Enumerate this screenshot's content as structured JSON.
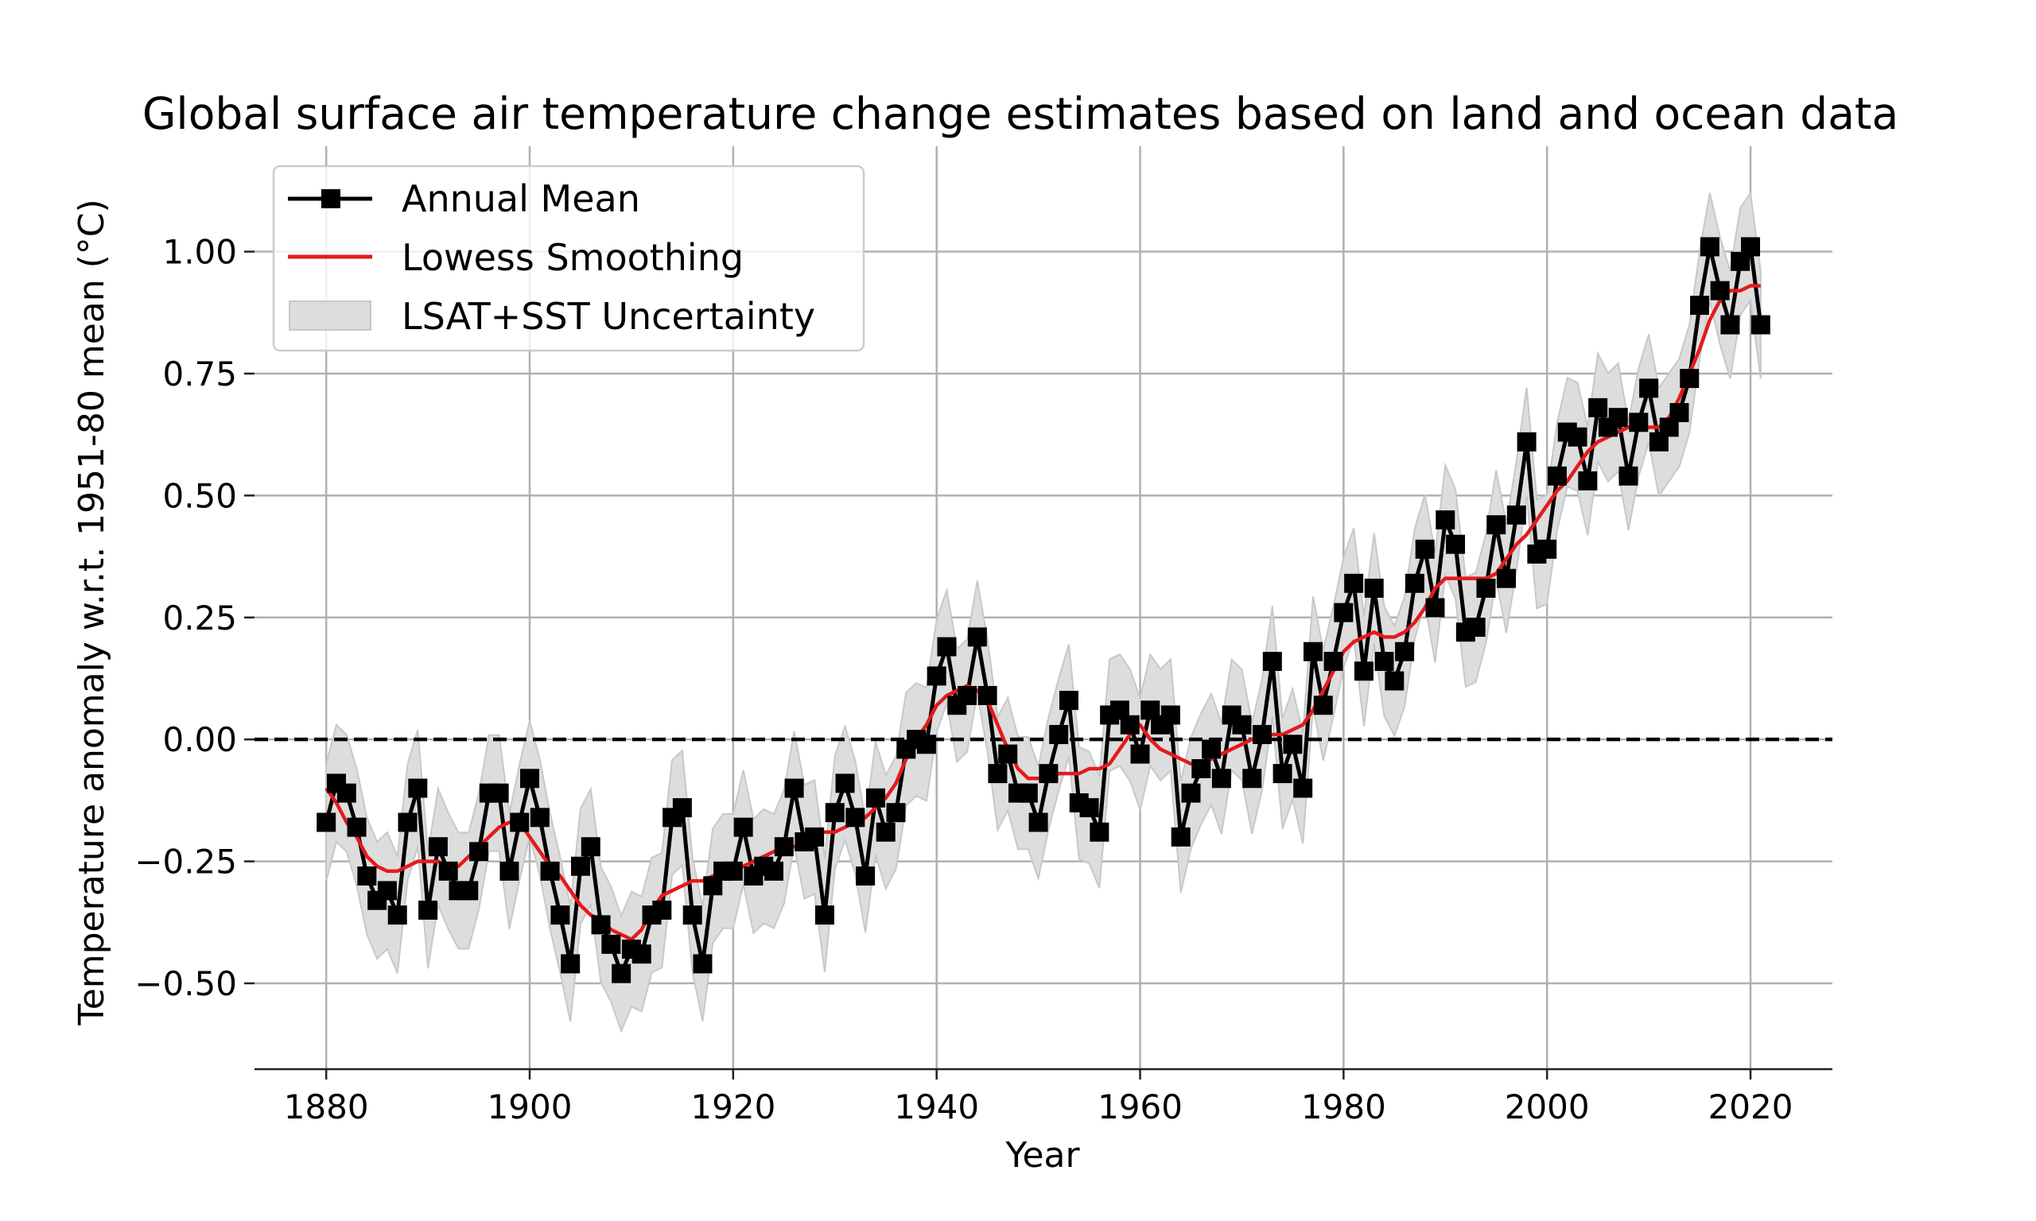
{
  "chart_data": {
    "type": "line",
    "title": "Global surface air temperature change estimates based on land and ocean data",
    "xlabel": "Year",
    "ylabel": "Temperature anomaly w.r.t. 1951-80 mean (°C)",
    "xlim": [
      1872.95,
      2028.05
    ],
    "ylim": [
      -0.676,
      1.216
    ],
    "xticks": [
      1880,
      1900,
      1920,
      1940,
      1960,
      1980,
      2000,
      2020
    ],
    "xtick_labels": [
      "1880",
      "1900",
      "1920",
      "1940",
      "1960",
      "1980",
      "2000",
      "2020"
    ],
    "yticks": [
      -0.5,
      -0.25,
      0.0,
      0.25,
      0.5,
      0.75,
      1.0
    ],
    "ytick_labels": [
      "−0.50",
      "−0.25",
      "0.00",
      "0.25",
      "0.50",
      "0.75",
      "1.00"
    ],
    "grid": true,
    "reference_line": {
      "y": 0.0,
      "style": "dashed",
      "color": "#000000"
    },
    "legend": {
      "position": "top-left",
      "entries": [
        {
          "label": "Annual Mean",
          "kind": "line-marker",
          "color": "#000000"
        },
        {
          "label": "Lowess Smoothing",
          "kind": "line",
          "color": "#e41a1c"
        },
        {
          "label": "LSAT+SST Uncertainty",
          "kind": "patch",
          "color": "#d9d9d9"
        }
      ]
    },
    "x": [
      1880,
      1881,
      1882,
      1883,
      1884,
      1885,
      1886,
      1887,
      1888,
      1889,
      1890,
      1891,
      1892,
      1893,
      1894,
      1895,
      1896,
      1897,
      1898,
      1899,
      1900,
      1901,
      1902,
      1903,
      1904,
      1905,
      1906,
      1907,
      1908,
      1909,
      1910,
      1911,
      1912,
      1913,
      1914,
      1915,
      1916,
      1917,
      1918,
      1919,
      1920,
      1921,
      1922,
      1923,
      1924,
      1925,
      1926,
      1927,
      1928,
      1929,
      1930,
      1931,
      1932,
      1933,
      1934,
      1935,
      1936,
      1937,
      1938,
      1939,
      1940,
      1941,
      1942,
      1943,
      1944,
      1945,
      1946,
      1947,
      1948,
      1949,
      1950,
      1951,
      1952,
      1953,
      1954,
      1955,
      1956,
      1957,
      1958,
      1959,
      1960,
      1961,
      1962,
      1963,
      1964,
      1965,
      1966,
      1967,
      1968,
      1969,
      1970,
      1971,
      1972,
      1973,
      1974,
      1975,
      1976,
      1977,
      1978,
      1979,
      1980,
      1981,
      1982,
      1983,
      1984,
      1985,
      1986,
      1987,
      1988,
      1989,
      1990,
      1991,
      1992,
      1993,
      1994,
      1995,
      1996,
      1997,
      1998,
      1999,
      2000,
      2001,
      2002,
      2003,
      2004,
      2005,
      2006,
      2007,
      2008,
      2009,
      2010,
      2011,
      2012,
      2013,
      2014,
      2015,
      2016,
      2017,
      2018,
      2019,
      2020,
      2021
    ],
    "series": [
      {
        "name": "Annual Mean",
        "color": "#000000",
        "marker": "square",
        "values": [
          -0.17,
          -0.09,
          -0.11,
          -0.18,
          -0.28,
          -0.33,
          -0.31,
          -0.36,
          -0.17,
          -0.1,
          -0.35,
          -0.22,
          -0.27,
          -0.31,
          -0.31,
          -0.23,
          -0.11,
          -0.11,
          -0.27,
          -0.17,
          -0.08,
          -0.16,
          -0.27,
          -0.36,
          -0.46,
          -0.26,
          -0.22,
          -0.38,
          -0.42,
          -0.48,
          -0.43,
          -0.44,
          -0.36,
          -0.35,
          -0.16,
          -0.14,
          -0.36,
          -0.46,
          -0.3,
          -0.27,
          -0.27,
          -0.18,
          -0.28,
          -0.26,
          -0.27,
          -0.22,
          -0.1,
          -0.21,
          -0.2,
          -0.36,
          -0.15,
          -0.09,
          -0.16,
          -0.28,
          -0.12,
          -0.19,
          -0.15,
          -0.02,
          -0.0,
          -0.01,
          0.13,
          0.19,
          0.07,
          0.09,
          0.21,
          0.09,
          -0.07,
          -0.03,
          -0.11,
          -0.11,
          -0.17,
          -0.07,
          0.01,
          0.08,
          -0.13,
          -0.14,
          -0.19,
          0.05,
          0.06,
          0.03,
          -0.03,
          0.06,
          0.03,
          0.05,
          -0.2,
          -0.11,
          -0.06,
          -0.02,
          -0.08,
          0.05,
          0.03,
          -0.08,
          0.01,
          0.16,
          -0.07,
          -0.01,
          -0.1,
          0.18,
          0.07,
          0.16,
          0.26,
          0.32,
          0.14,
          0.31,
          0.16,
          0.12,
          0.18,
          0.32,
          0.39,
          0.27,
          0.45,
          0.4,
          0.22,
          0.23,
          0.31,
          0.44,
          0.33,
          0.46,
          0.61,
          0.38,
          0.39,
          0.54,
          0.63,
          0.62,
          0.53,
          0.68,
          0.64,
          0.66,
          0.54,
          0.65,
          0.72,
          0.61,
          0.64,
          0.67,
          0.74,
          0.89,
          1.01,
          0.92,
          0.85,
          0.98,
          1.01,
          0.85
        ]
      },
      {
        "name": "Lowess Smoothing",
        "color": "#e41a1c",
        "values": [
          -0.1,
          -0.13,
          -0.17,
          -0.2,
          -0.24,
          -0.26,
          -0.27,
          -0.27,
          -0.26,
          -0.25,
          -0.25,
          -0.25,
          -0.26,
          -0.26,
          -0.24,
          -0.22,
          -0.2,
          -0.18,
          -0.17,
          -0.17,
          -0.2,
          -0.23,
          -0.26,
          -0.28,
          -0.31,
          -0.34,
          -0.36,
          -0.37,
          -0.39,
          -0.4,
          -0.41,
          -0.39,
          -0.35,
          -0.32,
          -0.31,
          -0.3,
          -0.29,
          -0.29,
          -0.28,
          -0.28,
          -0.27,
          -0.26,
          -0.25,
          -0.24,
          -0.23,
          -0.22,
          -0.22,
          -0.21,
          -0.19,
          -0.19,
          -0.19,
          -0.18,
          -0.17,
          -0.16,
          -0.14,
          -0.12,
          -0.09,
          -0.04,
          -0.0,
          0.03,
          0.07,
          0.09,
          0.1,
          0.11,
          0.1,
          0.08,
          0.03,
          -0.02,
          -0.06,
          -0.08,
          -0.08,
          -0.08,
          -0.07,
          -0.07,
          -0.07,
          -0.06,
          -0.06,
          -0.05,
          -0.02,
          0.01,
          0.03,
          0.0,
          -0.02,
          -0.03,
          -0.04,
          -0.05,
          -0.05,
          -0.04,
          -0.03,
          -0.02,
          -0.01,
          0.0,
          0.0,
          0.01,
          0.01,
          0.02,
          0.03,
          0.06,
          0.1,
          0.14,
          0.18,
          0.2,
          0.21,
          0.22,
          0.21,
          0.21,
          0.22,
          0.24,
          0.27,
          0.31,
          0.33,
          0.33,
          0.33,
          0.33,
          0.33,
          0.34,
          0.37,
          0.4,
          0.42,
          0.45,
          0.48,
          0.51,
          0.53,
          0.56,
          0.59,
          0.61,
          0.62,
          0.63,
          0.64,
          0.64,
          0.64,
          0.64,
          0.66,
          0.7,
          0.75,
          0.8,
          0.86,
          0.9,
          0.92,
          0.92,
          0.93,
          0.93
        ]
      }
    ],
    "uncertainty": {
      "name": "LSAT+SST Uncertainty",
      "color": "#d9d9d9",
      "half_width_start": 0.12,
      "half_width_end": 0.11
    }
  }
}
